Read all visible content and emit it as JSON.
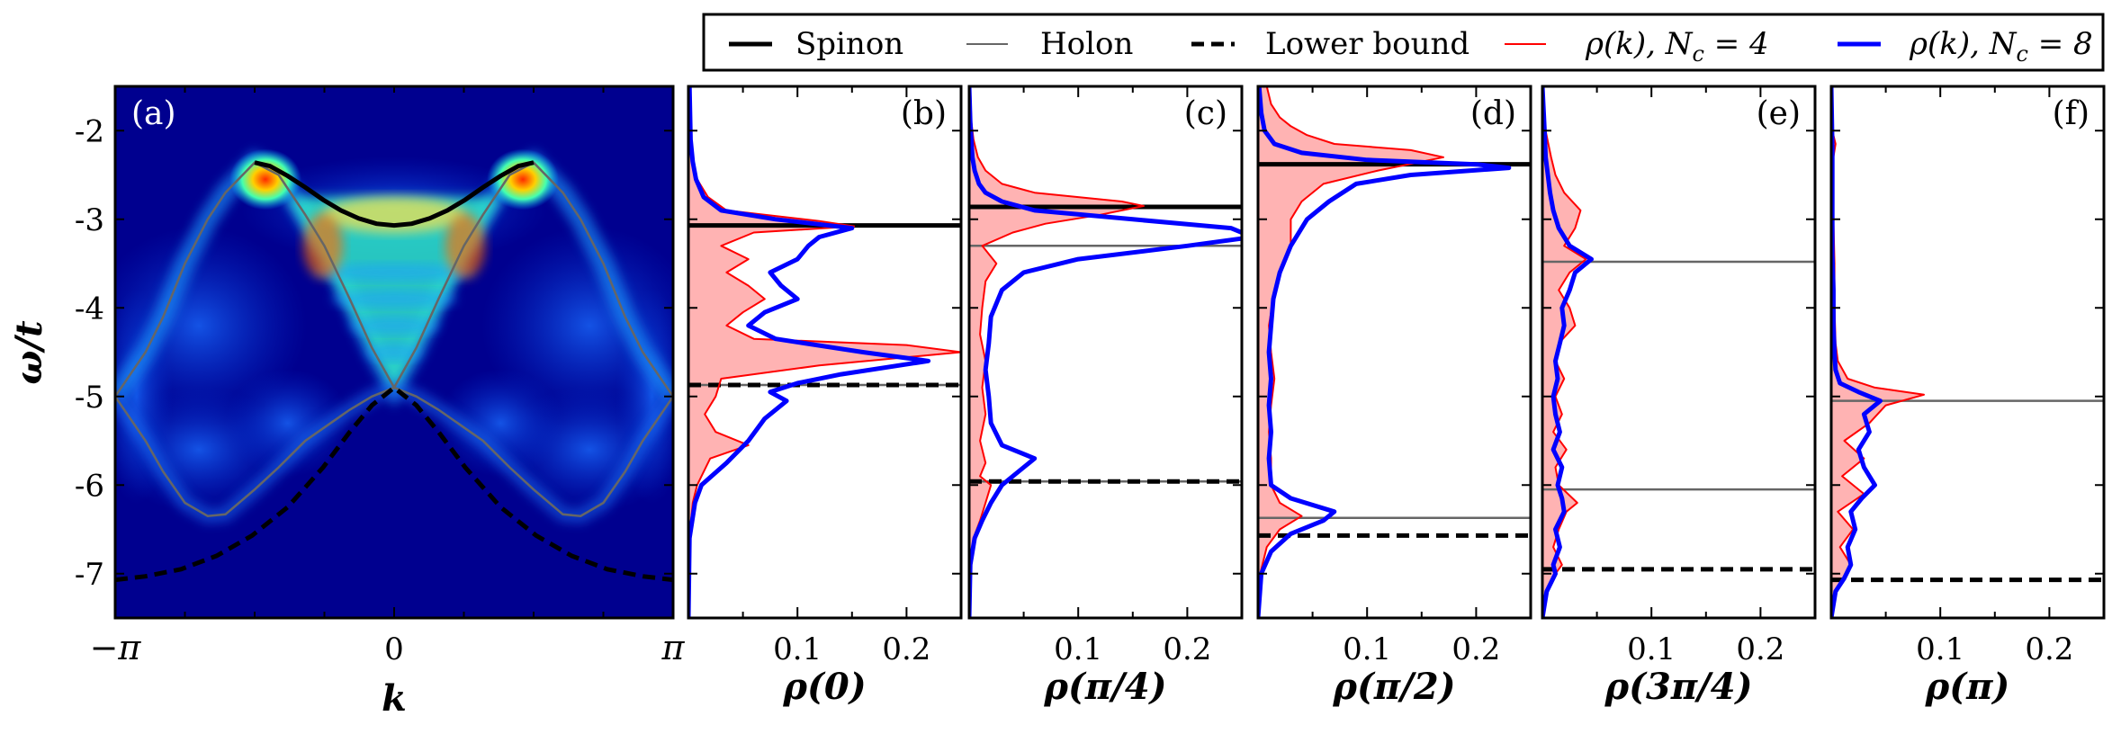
{
  "legend": {
    "entries": [
      {
        "label": "Spinon",
        "style": "solid-thick",
        "color": "#000000"
      },
      {
        "label": "Holon",
        "style": "solid-thin",
        "color": "#666666"
      },
      {
        "label": "Lower bound",
        "style": "dashed-thick",
        "color": "#000000"
      },
      {
        "label": "ρ(k), N_c = 4",
        "label_main": "ρ(k), ",
        "label_N": "N",
        "label_sub": "c",
        "label_eq": " = 4",
        "style": "solid-thin",
        "color": "#ff0000"
      },
      {
        "label": "ρ(k), N_c = 8",
        "label_main": "ρ(k), ",
        "label_N": "N",
        "label_sub": "c",
        "label_eq": " = 8",
        "style": "solid-thick",
        "color": "#0000ff"
      }
    ]
  },
  "colors": {
    "spinon": "#000000",
    "holon": "#666666",
    "lower_bound": "#000000",
    "nc4": "#ff0000",
    "nc4_fill": "#ffb3b3",
    "nc8": "#0000ff",
    "colormap": "jet"
  },
  "chart_data": [
    {
      "panel": "(a)",
      "type": "heatmap",
      "description_axes": "spectral function vs momentum and energy",
      "xlabel": "k",
      "ylabel": "ω/t",
      "xticks": [
        "−π",
        "0",
        "π"
      ],
      "xtick_values": [
        -3.14159,
        0,
        3.14159
      ],
      "yticks": [
        "-2",
        "-3",
        "-4",
        "-5",
        "-6",
        "-7"
      ],
      "ytick_values": [
        -2,
        -3,
        -4,
        -5,
        -6,
        -7
      ],
      "xlim": [
        -3.14159,
        3.14159
      ],
      "ylim": [
        -7.5,
        -1.5
      ],
      "spinon": {
        "k": [
          -1.571,
          -1.4,
          -1.2,
          -1.0,
          -0.8,
          -0.6,
          -0.4,
          -0.2,
          0,
          0.2,
          0.4,
          0.6,
          0.8,
          1.0,
          1.2,
          1.4,
          1.571
        ],
        "omega": [
          -2.36,
          -2.4,
          -2.51,
          -2.64,
          -2.78,
          -2.9,
          -2.99,
          -3.05,
          -3.07,
          -3.05,
          -2.99,
          -2.9,
          -2.78,
          -2.64,
          -2.51,
          -2.4,
          -2.36
        ]
      },
      "holon": {
        "k": [
          -3.1416,
          -2.8,
          -2.6,
          -2.356,
          -2.1,
          -1.9,
          -1.571,
          -1.3,
          -1.0,
          -0.785,
          -0.5,
          -0.25,
          0,
          0.25,
          0.5,
          0.785,
          1.0,
          1.3,
          1.571,
          1.9,
          2.1,
          2.356,
          2.6,
          2.8,
          3.1416
        ],
        "omega_upper": [
          -5.0,
          -4.5,
          -4.1,
          -3.5,
          -3.0,
          -2.7,
          -2.36,
          -2.5,
          -2.95,
          -3.3,
          -3.9,
          -4.45,
          -4.9,
          -4.45,
          -3.9,
          -3.3,
          -2.95,
          -2.5,
          -2.36,
          -2.7,
          -3.0,
          -3.5,
          -4.1,
          -4.5,
          -5.0
        ],
        "omega_lower": [
          -5.0,
          -5.5,
          -5.85,
          -6.2,
          -6.35,
          -6.33,
          -6.05,
          -5.8,
          -5.5,
          -5.35,
          -5.15,
          -5.0,
          -4.9,
          -5.0,
          -5.15,
          -5.35,
          -5.5,
          -5.8,
          -6.05,
          -6.33,
          -6.35,
          -6.2,
          -5.85,
          -5.5,
          -5.0
        ]
      },
      "lower_bound": {
        "k": [
          -3.1416,
          -2.8,
          -2.4,
          -2.0,
          -1.6,
          -1.2,
          -0.8,
          -0.5,
          -0.25,
          0,
          0.25,
          0.5,
          0.8,
          1.2,
          1.6,
          2.0,
          2.4,
          2.8,
          3.1416
        ],
        "omega": [
          -7.07,
          -7.03,
          -6.95,
          -6.8,
          -6.57,
          -6.25,
          -5.8,
          -5.4,
          -5.1,
          -4.9,
          -5.1,
          -5.4,
          -5.8,
          -6.25,
          -6.57,
          -6.8,
          -6.95,
          -7.03,
          -7.07
        ]
      }
    },
    {
      "panel": "(b)",
      "type": "line",
      "xlabel": "ρ(0)",
      "xticks": [
        "0.1",
        "0.2"
      ],
      "xlim": [
        0,
        0.25
      ],
      "ylim": [
        -7.5,
        -1.5
      ],
      "hlines": [
        {
          "kind": "spinon",
          "y": -3.07
        },
        {
          "kind": "holon",
          "y": -4.87
        },
        {
          "kind": "lower_bound",
          "y": -4.87
        }
      ],
      "nc4": {
        "omega": [
          -7.5,
          -6.6,
          -6.2,
          -6.0,
          -5.7,
          -5.55,
          -5.4,
          -5.2,
          -5.0,
          -4.8,
          -4.65,
          -4.5,
          -4.42,
          -4.35,
          -4.2,
          -4.05,
          -3.9,
          -3.75,
          -3.6,
          -3.45,
          -3.3,
          -3.15,
          -3.08,
          -3.02,
          -2.9,
          -2.75,
          -2.55,
          -2.35,
          -2.1,
          -1.5
        ],
        "rho": [
          0.0,
          0.001,
          0.004,
          0.008,
          0.02,
          0.055,
          0.025,
          0.015,
          0.025,
          0.03,
          0.12,
          0.25,
          0.2,
          0.06,
          0.035,
          0.05,
          0.07,
          0.055,
          0.035,
          0.055,
          0.03,
          0.06,
          0.152,
          0.12,
          0.035,
          0.018,
          0.008,
          0.004,
          0.002,
          0.001
        ]
      },
      "nc8": {
        "omega": [
          -7.5,
          -6.6,
          -6.2,
          -6.0,
          -5.75,
          -5.5,
          -5.25,
          -5.05,
          -4.95,
          -4.85,
          -4.75,
          -4.6,
          -4.5,
          -4.35,
          -4.2,
          -4.05,
          -3.9,
          -3.75,
          -3.6,
          -3.45,
          -3.3,
          -3.2,
          -3.1,
          -3.0,
          -2.9,
          -2.75,
          -2.55,
          -2.35,
          -2.1,
          -1.5
        ],
        "rho": [
          0.0,
          0.001,
          0.006,
          0.012,
          0.035,
          0.055,
          0.07,
          0.09,
          0.075,
          0.1,
          0.14,
          0.22,
          0.16,
          0.08,
          0.055,
          0.07,
          0.1,
          0.085,
          0.075,
          0.1,
          0.11,
          0.12,
          0.15,
          0.08,
          0.03,
          0.014,
          0.007,
          0.004,
          0.002,
          0.001
        ]
      }
    },
    {
      "panel": "(c)",
      "type": "line",
      "xlabel": "ρ(π/4)",
      "xticks": [
        "0.1",
        "0.2"
      ],
      "xlim": [
        0,
        0.25
      ],
      "ylim": [
        -7.5,
        -1.5
      ],
      "hlines": [
        {
          "kind": "spinon",
          "y": -2.86
        },
        {
          "kind": "holon",
          "y": -3.3
        },
        {
          "kind": "holon",
          "y": -5.96
        },
        {
          "kind": "lower_bound",
          "y": -5.96
        }
      ],
      "nc4": {
        "omega": [
          -7.5,
          -6.9,
          -6.6,
          -6.4,
          -6.2,
          -6.0,
          -5.9,
          -5.75,
          -5.5,
          -5.2,
          -4.9,
          -4.6,
          -4.3,
          -4.0,
          -3.7,
          -3.5,
          -3.3,
          -3.15,
          -3.05,
          -2.95,
          -2.85,
          -2.8,
          -2.7,
          -2.6,
          -2.45,
          -2.3,
          -2.1,
          -1.9,
          -1.5
        ],
        "rho": [
          0.0,
          0.001,
          0.004,
          0.01,
          0.015,
          0.02,
          0.01,
          0.015,
          0.01,
          0.015,
          0.012,
          0.015,
          0.01,
          0.012,
          0.015,
          0.025,
          0.012,
          0.04,
          0.07,
          0.12,
          0.16,
          0.14,
          0.06,
          0.03,
          0.015,
          0.008,
          0.004,
          0.002,
          0.001
        ]
      },
      "nc8": {
        "omega": [
          -7.5,
          -6.9,
          -6.6,
          -6.4,
          -6.2,
          -6.0,
          -5.85,
          -5.7,
          -5.55,
          -5.3,
          -5.0,
          -4.7,
          -4.4,
          -4.1,
          -3.8,
          -3.6,
          -3.45,
          -3.3,
          -3.2,
          -3.1,
          -3.0,
          -2.9,
          -2.8,
          -2.7,
          -2.6,
          -2.45,
          -2.3,
          -2.1,
          -1.9,
          -1.5
        ],
        "rho": [
          0.0,
          0.001,
          0.005,
          0.012,
          0.02,
          0.03,
          0.045,
          0.06,
          0.03,
          0.02,
          0.018,
          0.015,
          0.018,
          0.02,
          0.03,
          0.05,
          0.1,
          0.2,
          0.26,
          0.24,
          0.15,
          0.06,
          0.03,
          0.015,
          0.009,
          0.005,
          0.003,
          0.002,
          0.001,
          0.0
        ]
      }
    },
    {
      "panel": "(d)",
      "type": "line",
      "xlabel": "ρ(π/2)",
      "xticks": [
        "0.1",
        "0.2"
      ],
      "xlim": [
        0,
        0.25
      ],
      "ylim": [
        -7.5,
        -1.5
      ],
      "hlines": [
        {
          "kind": "spinon",
          "y": -2.38
        },
        {
          "kind": "holon",
          "y": -6.37
        },
        {
          "kind": "lower_bound",
          "y": -6.57
        }
      ],
      "nc4": {
        "omega": [
          -7.5,
          -7.0,
          -6.7,
          -6.5,
          -6.35,
          -6.2,
          -6.0,
          -5.7,
          -5.4,
          -5.1,
          -4.8,
          -4.5,
          -4.2,
          -3.9,
          -3.6,
          -3.3,
          -3.0,
          -2.8,
          -2.6,
          -2.45,
          -2.3,
          -2.22,
          -2.15,
          -2.05,
          -1.95,
          -1.85,
          -1.7,
          -1.5
        ],
        "rho": [
          0.0,
          0.002,
          0.008,
          0.02,
          0.04,
          0.02,
          0.012,
          0.012,
          0.01,
          0.012,
          0.015,
          0.012,
          0.01,
          0.014,
          0.02,
          0.03,
          0.03,
          0.04,
          0.06,
          0.11,
          0.17,
          0.14,
          0.07,
          0.045,
          0.03,
          0.02,
          0.012,
          0.008
        ]
      },
      "nc8": {
        "omega": [
          -7.5,
          -7.0,
          -6.75,
          -6.55,
          -6.4,
          -6.3,
          -6.15,
          -6.0,
          -5.7,
          -5.4,
          -5.1,
          -4.8,
          -4.5,
          -4.2,
          -3.9,
          -3.6,
          -3.3,
          -3.0,
          -2.8,
          -2.6,
          -2.5,
          -2.42,
          -2.38,
          -2.33,
          -2.25,
          -2.15,
          -2.0,
          -1.8,
          -1.5
        ],
        "rho": [
          0.0,
          0.003,
          0.012,
          0.03,
          0.06,
          0.07,
          0.03,
          0.012,
          0.01,
          0.012,
          0.01,
          0.012,
          0.01,
          0.012,
          0.014,
          0.02,
          0.03,
          0.045,
          0.065,
          0.09,
          0.14,
          0.23,
          0.2,
          0.1,
          0.04,
          0.015,
          0.006,
          0.003,
          0.001
        ]
      }
    },
    {
      "panel": "(e)",
      "type": "line",
      "xlabel": "ρ(3π/4)",
      "xticks": [
        "0.1",
        "0.2"
      ],
      "xlim": [
        0,
        0.25
      ],
      "ylim": [
        -7.5,
        -1.5
      ],
      "hlines": [
        {
          "kind": "holon",
          "y": -3.48
        },
        {
          "kind": "holon",
          "y": -6.05
        },
        {
          "kind": "lower_bound",
          "y": -6.95
        }
      ],
      "nc4": {
        "omega": [
          -7.5,
          -7.2,
          -7.0,
          -6.9,
          -6.7,
          -6.5,
          -6.3,
          -6.2,
          -6.0,
          -5.8,
          -5.6,
          -5.4,
          -5.2,
          -5.0,
          -4.8,
          -4.6,
          -4.4,
          -4.2,
          -4.0,
          -3.8,
          -3.6,
          -3.45,
          -3.3,
          -3.1,
          -2.9,
          -2.7,
          -2.5,
          -2.3,
          -2.0,
          -1.5
        ],
        "rho": [
          0.0,
          0.004,
          0.012,
          0.018,
          0.01,
          0.015,
          0.022,
          0.032,
          0.015,
          0.012,
          0.022,
          0.01,
          0.018,
          0.012,
          0.02,
          0.012,
          0.015,
          0.03,
          0.025,
          0.015,
          0.025,
          0.04,
          0.02,
          0.03,
          0.035,
          0.02,
          0.012,
          0.008,
          0.003,
          0.0
        ]
      },
      "nc8": {
        "omega": [
          -7.5,
          -7.2,
          -7.0,
          -6.9,
          -6.7,
          -6.5,
          -6.3,
          -6.15,
          -6.0,
          -5.8,
          -5.6,
          -5.4,
          -5.2,
          -5.0,
          -4.8,
          -4.6,
          -4.4,
          -4.2,
          -4.0,
          -3.8,
          -3.6,
          -3.45,
          -3.3,
          -3.1,
          -2.9,
          -2.7,
          -2.5,
          -2.3,
          -2.0,
          -1.5
        ],
        "rho": [
          0.0,
          0.004,
          0.012,
          0.01,
          0.016,
          0.012,
          0.02,
          0.018,
          0.014,
          0.018,
          0.01,
          0.016,
          0.012,
          0.01,
          0.014,
          0.012,
          0.016,
          0.02,
          0.018,
          0.025,
          0.03,
          0.045,
          0.025,
          0.015,
          0.01,
          0.007,
          0.005,
          0.003,
          0.002,
          0.0
        ]
      }
    },
    {
      "panel": "(f)",
      "type": "line",
      "xlabel": "ρ(π)",
      "xticks": [
        "0.1",
        "0.2"
      ],
      "xlim": [
        0,
        0.25
      ],
      "ylim": [
        -7.5,
        -1.5
      ],
      "hlines": [
        {
          "kind": "holon",
          "y": -5.05
        },
        {
          "kind": "lower_bound",
          "y": -7.07
        }
      ],
      "nc4": {
        "omega": [
          -7.5,
          -7.2,
          -7.05,
          -6.9,
          -6.7,
          -6.5,
          -6.3,
          -6.1,
          -5.9,
          -5.7,
          -5.5,
          -5.3,
          -5.1,
          -4.98,
          -4.9,
          -4.8,
          -4.6,
          -4.4,
          -4.0,
          -3.5,
          -3.0,
          -2.6,
          -2.3,
          -2.15,
          -2.0,
          -1.5
        ],
        "rho": [
          0.0,
          0.004,
          0.012,
          0.018,
          0.008,
          0.02,
          0.006,
          0.03,
          0.01,
          0.03,
          0.012,
          0.035,
          0.05,
          0.085,
          0.04,
          0.015,
          0.006,
          0.004,
          0.003,
          0.003,
          0.002,
          0.001,
          0.002,
          0.004,
          0.001,
          0.0
        ]
      },
      "nc8": {
        "omega": [
          -7.5,
          -7.2,
          -7.05,
          -6.9,
          -6.7,
          -6.5,
          -6.3,
          -6.15,
          -6.0,
          -5.8,
          -5.6,
          -5.4,
          -5.2,
          -5.05,
          -4.95,
          -4.85,
          -4.7,
          -4.5,
          -4.2,
          -3.8,
          -3.4,
          -3.0,
          -2.6,
          -2.2,
          -1.5
        ],
        "rho": [
          0.0,
          0.004,
          0.012,
          0.018,
          0.015,
          0.022,
          0.018,
          0.028,
          0.04,
          0.03,
          0.025,
          0.035,
          0.03,
          0.045,
          0.025,
          0.008,
          0.004,
          0.003,
          0.002,
          0.002,
          0.001,
          0.001,
          0.001,
          0.001,
          0.0
        ]
      }
    }
  ]
}
